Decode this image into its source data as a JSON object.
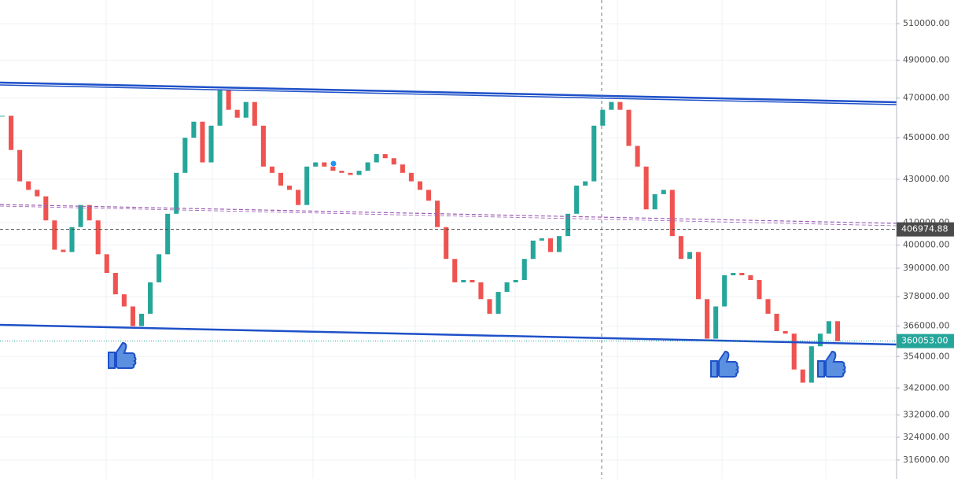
{
  "chart_data": {
    "type": "candlestick",
    "scale": "log",
    "grid": true,
    "up_color": "#26a69a",
    "down_color": "#ef5350",
    "values": [
      461000,
      444000,
      429000,
      425000,
      422000,
      411000,
      398000,
      397000,
      408000,
      418000,
      411000,
      396000,
      388000,
      379000,
      374000,
      366000,
      371000,
      384000,
      396000,
      414000,
      433000,
      450000,
      458000,
      438000,
      456000,
      474000,
      464000,
      460000,
      468000,
      456000,
      436000,
      433000,
      427000,
      425000,
      418000,
      436000,
      438000,
      436000,
      434000,
      433000,
      432000,
      434000,
      438000,
      442000,
      440000,
      437000,
      433000,
      429000,
      425000,
      420000,
      408000,
      394000,
      384000,
      385000,
      384000,
      377000,
      371000,
      380000,
      384000,
      385000,
      394000,
      402000,
      403000,
      397000,
      404000,
      414000,
      427000,
      429000,
      456000,
      464000,
      468000,
      464000,
      446000,
      436000,
      416000,
      423000,
      425000,
      404000,
      394000,
      397000,
      377000,
      361000,
      374000,
      387000,
      388000,
      387000,
      385000,
      377000,
      371000,
      364000,
      363000,
      349000,
      344000,
      358000,
      363000,
      368000,
      360000
    ],
    "ylim": [
      309500,
      523400
    ],
    "yticks": [
      {
        "value": 510000,
        "label": "510000.00"
      },
      {
        "value": 490000,
        "label": "490000.00"
      },
      {
        "value": 470000,
        "label": "470000.00"
      },
      {
        "value": 450000,
        "label": "450000.00"
      },
      {
        "value": 430000,
        "label": "430000.00"
      },
      {
        "value": 410000,
        "label": "410000.00"
      },
      {
        "value": 400000,
        "label": "400000.00"
      },
      {
        "value": 390000,
        "label": "390000.00"
      },
      {
        "value": 378000,
        "label": "378000.00"
      },
      {
        "value": 366000,
        "label": "366000.00"
      },
      {
        "value": 354000,
        "label": "354000.00"
      },
      {
        "value": 342000,
        "label": "342000.00"
      },
      {
        "value": 332000,
        "label": "332000.00"
      },
      {
        "value": 324000,
        "label": "324000.00"
      },
      {
        "value": 316000,
        "label": "316000.00"
      }
    ],
    "price_lines": [
      {
        "value": 406974.88,
        "label": "406974.88",
        "color": "#4a4a4a"
      },
      {
        "value": 360053.0,
        "label": "360053.00",
        "color": "#26a69a"
      }
    ]
  }
}
